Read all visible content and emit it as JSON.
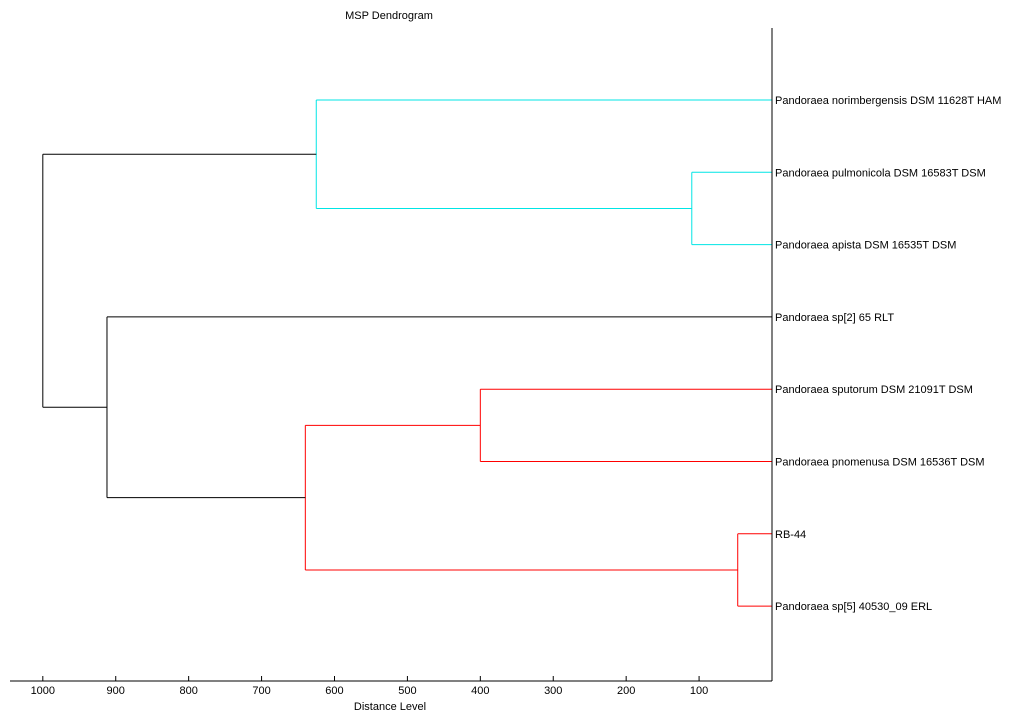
{
  "chart_data": {
    "type": "dendrogram",
    "title": "MSP Dendrogram",
    "xlabel": "Distance Level",
    "ylabel": "",
    "xlim": [
      1045,
      0
    ],
    "xticks": [
      1000,
      900,
      800,
      700,
      600,
      500,
      400,
      300,
      200,
      100
    ],
    "grid": false,
    "leaves": [
      {
        "label": "Pandoraea norimbergensis DSM 11628T HAM",
        "color": "#00e5e5"
      },
      {
        "label": "Pandoraea pulmonicola DSM 16583T DSM",
        "color": "#00e5e5"
      },
      {
        "label": "Pandoraea apista DSM 16535T DSM",
        "color": "#00e5e5"
      },
      {
        "label": "Pandoraea sp[2] 65 RLT",
        "color": "#000000"
      },
      {
        "label": "Pandoraea sputorum DSM 21091T DSM",
        "color": "#ff0000"
      },
      {
        "label": "Pandoraea pnomenusa DSM 16536T DSM",
        "color": "#ff0000"
      },
      {
        "label": "RB-44",
        "color": "#ff0000"
      },
      {
        "label": "Pandoraea sp[5] 40530_09 ERL",
        "color": "#ff0000"
      }
    ],
    "merges": [
      {
        "id": "n1",
        "children": [
          "L1",
          "L2"
        ],
        "distance": 110,
        "color": "#00e5e5"
      },
      {
        "id": "n2",
        "children": [
          "L0",
          "n1"
        ],
        "distance": 625,
        "color": "#00e5e5"
      },
      {
        "id": "n3",
        "children": [
          "L6",
          "L7"
        ],
        "distance": 47,
        "color": "#ff0000"
      },
      {
        "id": "n4",
        "children": [
          "L4",
          "L5"
        ],
        "distance": 400,
        "color": "#ff0000"
      },
      {
        "id": "n5",
        "children": [
          "n4",
          "n3"
        ],
        "distance": 640,
        "color": "#ff0000"
      },
      {
        "id": "n6",
        "children": [
          "L3",
          "n5"
        ],
        "distance": 912,
        "color": "#000000"
      },
      {
        "id": "n7",
        "children": [
          "n2",
          "n6"
        ],
        "distance": 1000,
        "color": "#000000"
      }
    ]
  }
}
